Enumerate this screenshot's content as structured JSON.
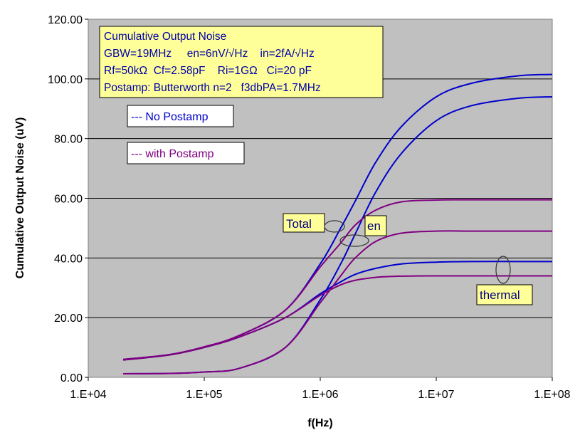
{
  "chart_data": {
    "type": "line",
    "xlabel": "f(Hz)",
    "ylabel": "Cumulative Output Noise (uV)",
    "xscale": "log",
    "xlim": [
      10000,
      100000000
    ],
    "ylim": [
      0,
      120
    ],
    "grid": "horizontal",
    "plot_background": "#c0c0c0",
    "xticks": [
      "1.E+04",
      "1.E+05",
      "1.E+06",
      "1.E+07",
      "1.E+08"
    ],
    "xtick_values": [
      10000,
      100000,
      1000000,
      10000000,
      100000000
    ],
    "yticks": [
      "0.00",
      "20.00",
      "40.00",
      "60.00",
      "80.00",
      "100.00",
      "120.00"
    ],
    "ytick_values": [
      0,
      20,
      40,
      60,
      80,
      100,
      120
    ],
    "x": [
      20000,
      50000,
      100000,
      200000,
      500000,
      1000000,
      1500000,
      2000000,
      3000000,
      5000000,
      10000000,
      20000000,
      50000000,
      100000000
    ],
    "series": [
      {
        "group": "No Postamp",
        "curve": "Total",
        "color": "#0000cc",
        "values": [
          6,
          7.6,
          10.2,
          14,
          22.5,
          38,
          50,
          59,
          72,
          84,
          94,
          98.5,
          101,
          101.5
        ]
      },
      {
        "group": "No Postamp",
        "curve": "en",
        "color": "#0000cc",
        "values": [
          1.2,
          1.3,
          1.8,
          3,
          10,
          26,
          38,
          48,
          62,
          75,
          86,
          91,
          93.5,
          94
        ]
      },
      {
        "group": "No Postamp",
        "curve": "thermal",
        "color": "#0000cc",
        "values": [
          5.8,
          7.5,
          10,
          13.5,
          20,
          28,
          32,
          34.5,
          36.5,
          38,
          38.6,
          38.8,
          38.8,
          38.8
        ]
      },
      {
        "group": "with Postamp",
        "curve": "Total",
        "color": "#800080",
        "values": [
          6,
          7.6,
          10.2,
          14,
          22.5,
          37,
          45,
          51,
          56,
          58.8,
          59.4,
          59.5,
          59.5,
          59.5
        ]
      },
      {
        "group": "with Postamp",
        "curve": "en",
        "color": "#800080",
        "values": [
          1.2,
          1.3,
          1.8,
          3,
          10,
          25,
          34,
          40,
          45.5,
          48.3,
          49,
          49,
          49,
          49
        ]
      },
      {
        "group": "with Postamp",
        "curve": "thermal",
        "color": "#800080",
        "values": [
          5.8,
          7.5,
          10,
          13.5,
          20,
          27.5,
          31,
          32.5,
          33.5,
          33.9,
          34,
          34,
          34,
          34
        ]
      }
    ],
    "info_box": [
      "Cumulative Output Noise",
      "GBW=19MHz     en=6nV/√Hz    in=2fA/√Hz",
      "Rf=50kΩ  Cf=2.58pF    Ri=1GΩ   Ci=20 pF",
      "Postamp: Butterworth n=2   f3dbPA=1.7MHz"
    ],
    "legend": [
      {
        "label": "--- No Postamp",
        "color": "#0000cc"
      },
      {
        "label": "--- with Postamp",
        "color": "#800080"
      }
    ],
    "annotations": {
      "total": "Total",
      "en": "en",
      "thermal": "thermal"
    }
  }
}
